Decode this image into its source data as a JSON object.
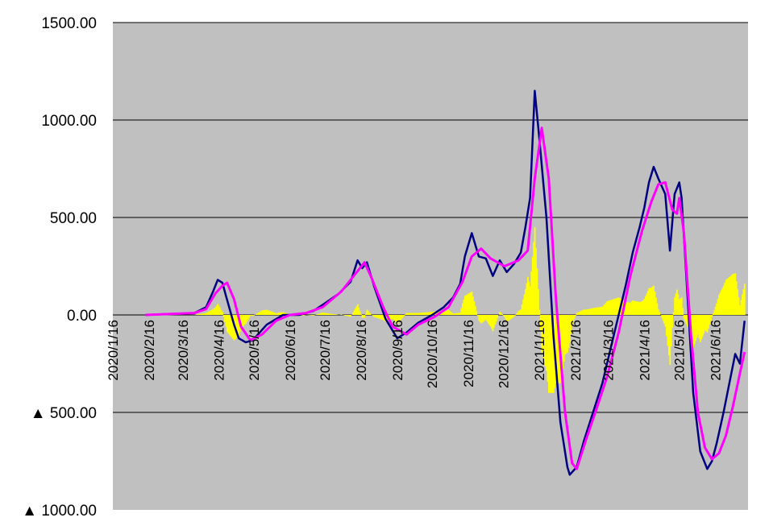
{
  "chart_data": {
    "type": "line",
    "title": "",
    "xlabel": "",
    "ylabel": "",
    "ylim": [
      -1000,
      1500
    ],
    "grid": true,
    "legend": "none",
    "colors": {
      "plot_bg": "#c0c0c0",
      "grid": "#000000",
      "bars": "#ffff00",
      "series_a": "#000080",
      "series_b": "#ff00ff"
    },
    "y_ticks": [
      {
        "value": 1500,
        "label": "1500.00"
      },
      {
        "value": 1000,
        "label": "1000.00"
      },
      {
        "value": 500,
        "label": "500.00"
      },
      {
        "value": 0,
        "label": "0.00"
      },
      {
        "value": -500,
        "label": "▲ 500.00"
      },
      {
        "value": -1000,
        "label": "▲ 1000.00"
      }
    ],
    "x_ticks": [
      {
        "day": 0,
        "label": "2020/1/16"
      },
      {
        "day": 31,
        "label": "2020/2/16"
      },
      {
        "day": 60,
        "label": "2020/3/16"
      },
      {
        "day": 91,
        "label": "2020/4/16"
      },
      {
        "day": 121,
        "label": "2020/5/16"
      },
      {
        "day": 152,
        "label": "2020/6/16"
      },
      {
        "day": 182,
        "label": "2020/7/16"
      },
      {
        "day": 213,
        "label": "2020/8/16"
      },
      {
        "day": 244,
        "label": "2020/9/16"
      },
      {
        "day": 274,
        "label": "2020/10/16"
      },
      {
        "day": 305,
        "label": "2020/11/16"
      },
      {
        "day": 335,
        "label": "2020/12/16"
      },
      {
        "day": 366,
        "label": "2021/1/16"
      },
      {
        "day": 397,
        "label": "2021/2/16"
      },
      {
        "day": 425,
        "label": "2021/3/16"
      },
      {
        "day": 456,
        "label": "2021/4/16"
      },
      {
        "day": 486,
        "label": "2021/5/16"
      },
      {
        "day": 517,
        "label": "2021/6/16"
      }
    ],
    "x_range_days": [
      0,
      545
    ],
    "series": [
      {
        "color": "#000080",
        "points": [
          [
            28,
            0
          ],
          [
            50,
            5
          ],
          [
            70,
            10
          ],
          [
            80,
            40
          ],
          [
            86,
            120
          ],
          [
            90,
            180
          ],
          [
            94,
            165
          ],
          [
            97,
            100
          ],
          [
            104,
            -50
          ],
          [
            108,
            -120
          ],
          [
            114,
            -140
          ],
          [
            120,
            -130
          ],
          [
            132,
            -50
          ],
          [
            146,
            0
          ],
          [
            160,
            0
          ],
          [
            172,
            20
          ],
          [
            182,
            60
          ],
          [
            194,
            110
          ],
          [
            204,
            170
          ],
          [
            210,
            280
          ],
          [
            214,
            240
          ],
          [
            218,
            270
          ],
          [
            224,
            150
          ],
          [
            234,
            -20
          ],
          [
            244,
            -120
          ],
          [
            252,
            -90
          ],
          [
            262,
            -40
          ],
          [
            274,
            0
          ],
          [
            284,
            40
          ],
          [
            292,
            90
          ],
          [
            298,
            160
          ],
          [
            302,
            300
          ],
          [
            308,
            420
          ],
          [
            314,
            300
          ],
          [
            320,
            290
          ],
          [
            326,
            200
          ],
          [
            332,
            280
          ],
          [
            338,
            220
          ],
          [
            344,
            260
          ],
          [
            350,
            320
          ],
          [
            354,
            450
          ],
          [
            358,
            600
          ],
          [
            362,
            1150
          ],
          [
            366,
            900
          ],
          [
            372,
            500
          ],
          [
            378,
            -100
          ],
          [
            384,
            -550
          ],
          [
            390,
            -780
          ],
          [
            392,
            -820
          ],
          [
            398,
            -780
          ],
          [
            404,
            -650
          ],
          [
            412,
            -500
          ],
          [
            420,
            -350
          ],
          [
            428,
            -150
          ],
          [
            434,
            0
          ],
          [
            440,
            150
          ],
          [
            446,
            320
          ],
          [
            452,
            450
          ],
          [
            456,
            550
          ],
          [
            460,
            680
          ],
          [
            464,
            760
          ],
          [
            468,
            700
          ],
          [
            474,
            620
          ],
          [
            478,
            330
          ],
          [
            482,
            620
          ],
          [
            486,
            680
          ],
          [
            488,
            600
          ],
          [
            492,
            200
          ],
          [
            498,
            -400
          ],
          [
            504,
            -700
          ],
          [
            510,
            -790
          ],
          [
            514,
            -750
          ],
          [
            518,
            -660
          ],
          [
            524,
            -500
          ],
          [
            530,
            -320
          ],
          [
            534,
            -200
          ],
          [
            538,
            -250
          ],
          [
            542,
            -30
          ]
        ]
      },
      {
        "color": "#ff00ff",
        "points": [
          [
            28,
            0
          ],
          [
            50,
            5
          ],
          [
            70,
            10
          ],
          [
            80,
            30
          ],
          [
            88,
            110
          ],
          [
            94,
            150
          ],
          [
            98,
            165
          ],
          [
            104,
            80
          ],
          [
            110,
            -60
          ],
          [
            118,
            -130
          ],
          [
            128,
            -100
          ],
          [
            140,
            -30
          ],
          [
            152,
            0
          ],
          [
            166,
            10
          ],
          [
            180,
            40
          ],
          [
            196,
            120
          ],
          [
            208,
            210
          ],
          [
            216,
            270
          ],
          [
            222,
            190
          ],
          [
            232,
            40
          ],
          [
            240,
            -60
          ],
          [
            252,
            -100
          ],
          [
            262,
            -50
          ],
          [
            276,
            -10
          ],
          [
            288,
            40
          ],
          [
            300,
            170
          ],
          [
            308,
            300
          ],
          [
            316,
            340
          ],
          [
            324,
            290
          ],
          [
            336,
            250
          ],
          [
            348,
            280
          ],
          [
            356,
            330
          ],
          [
            362,
            700
          ],
          [
            368,
            960
          ],
          [
            374,
            700
          ],
          [
            380,
            100
          ],
          [
            388,
            -500
          ],
          [
            394,
            -760
          ],
          [
            398,
            -790
          ],
          [
            406,
            -640
          ],
          [
            414,
            -500
          ],
          [
            424,
            -320
          ],
          [
            434,
            -90
          ],
          [
            444,
            200
          ],
          [
            454,
            430
          ],
          [
            462,
            580
          ],
          [
            468,
            670
          ],
          [
            474,
            680
          ],
          [
            480,
            540
          ],
          [
            484,
            520
          ],
          [
            486,
            600
          ],
          [
            490,
            420
          ],
          [
            496,
            -100
          ],
          [
            502,
            -500
          ],
          [
            508,
            -680
          ],
          [
            514,
            -740
          ],
          [
            520,
            -710
          ],
          [
            526,
            -620
          ],
          [
            532,
            -470
          ],
          [
            538,
            -300
          ],
          [
            542,
            -190
          ]
        ]
      }
    ],
    "bars_note_values": "yellow bars = daily difference (series_a minus series_b), derived series"
  }
}
